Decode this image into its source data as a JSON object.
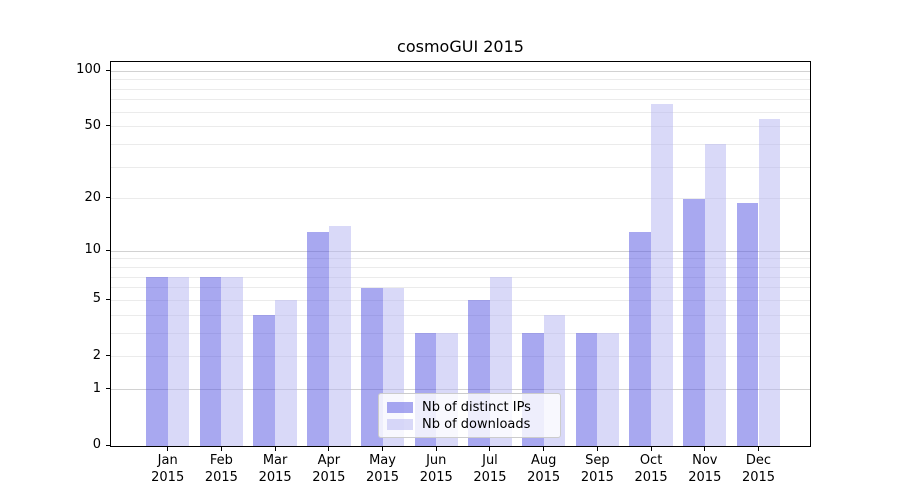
{
  "chart_data": {
    "type": "bar",
    "title": "cosmoGUI 2015",
    "categories": [
      "Jan",
      "Feb",
      "Mar",
      "Apr",
      "May",
      "Jun",
      "Jul",
      "Aug",
      "Sep",
      "Oct",
      "Nov",
      "Dec"
    ],
    "xtick_year": "2015",
    "series": [
      {
        "name": "Nb of distinct IPs",
        "color": "rgba(81,81,225,0.5)",
        "color_hex": "#a8a8f0",
        "values": [
          7,
          7,
          4,
          13,
          6,
          3,
          5,
          3,
          3,
          13,
          20,
          19
        ]
      },
      {
        "name": "Nb of downloads",
        "color": "rgba(179,179,241,0.5)",
        "color_hex": "#d9d9f8",
        "values": [
          7,
          7,
          5,
          14,
          6,
          3,
          7,
          4,
          3,
          66,
          40,
          55
        ]
      }
    ],
    "yscale": "log1p",
    "ylim": [
      0,
      112
    ],
    "yticks": [
      0,
      1,
      2,
      5,
      10,
      20,
      50,
      100
    ],
    "major_gridlines": [
      1,
      10,
      100
    ],
    "minor_gridlines": [
      2,
      3,
      4,
      5,
      6,
      7,
      8,
      9,
      20,
      30,
      40,
      50,
      60,
      70,
      80,
      90
    ],
    "grid": true,
    "legend_position": "inside-bottom-center",
    "colors": {
      "bar_distinct_ips": "#a8a8f0",
      "bar_downloads": "#d9d9f8",
      "grid_major": "#d2d2d2",
      "grid_minor": "#ebebeb",
      "spine": "#000000",
      "text": "#000000",
      "legend_border": "#cccccc"
    }
  }
}
